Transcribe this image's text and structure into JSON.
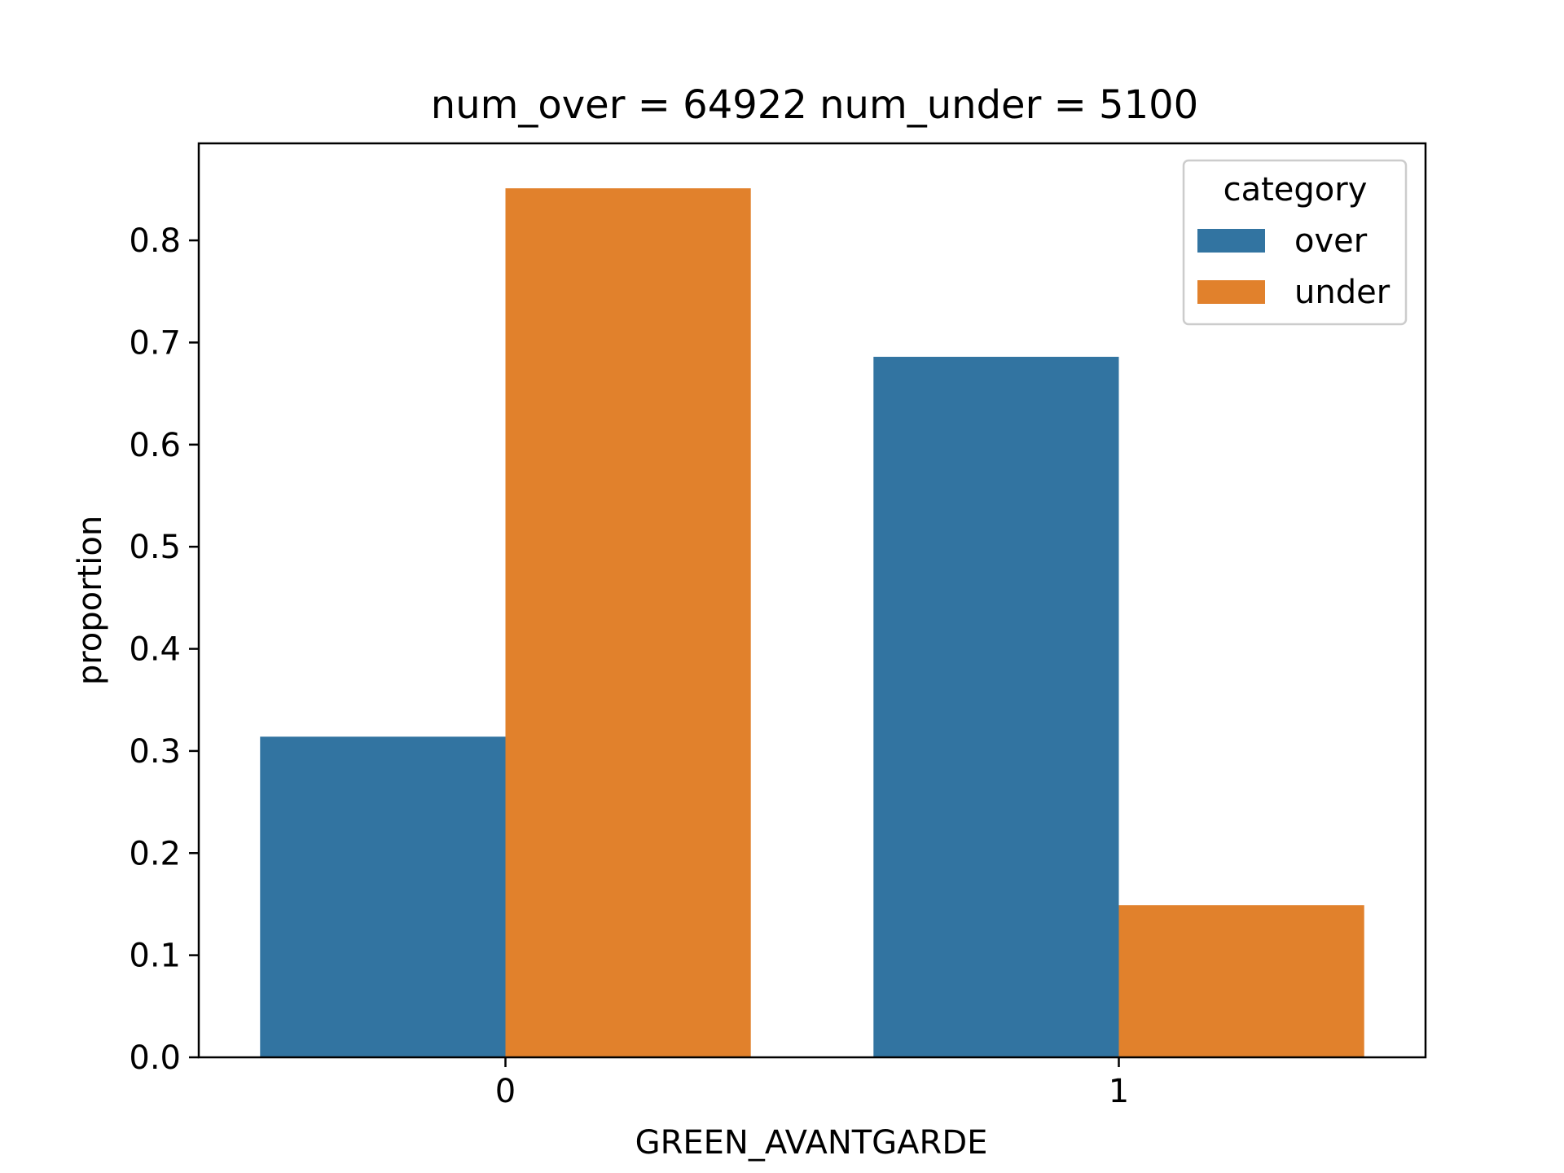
{
  "chart_data": {
    "type": "bar",
    "title": "num_over = 64922  num_under = 5100",
    "xlabel": "GREEN_AVANTGARDE",
    "ylabel": "proportion",
    "categories": [
      "0",
      "1"
    ],
    "series": [
      {
        "name": "over",
        "color": "#3274a1",
        "values": [
          0.314,
          0.686
        ]
      },
      {
        "name": "under",
        "color": "#e1812c",
        "values": [
          0.851,
          0.149
        ]
      }
    ],
    "ylim": [
      0,
      0.895
    ],
    "yticks": [
      0.0,
      0.1,
      0.2,
      0.3,
      0.4,
      0.5,
      0.6,
      0.7,
      0.8
    ],
    "ytick_labels": [
      "0.0",
      "0.1",
      "0.2",
      "0.3",
      "0.4",
      "0.5",
      "0.6",
      "0.7",
      "0.8"
    ],
    "grid": false,
    "legend": {
      "title": "category",
      "position": "top-right"
    }
  }
}
